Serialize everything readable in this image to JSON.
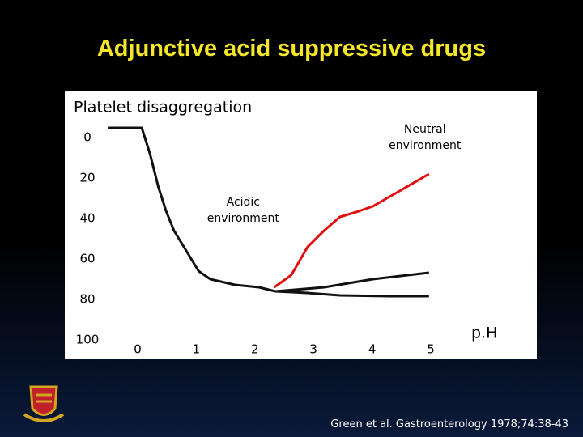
{
  "title": "Adjunctive acid suppressive drugs",
  "citation": "Green et al. Gastroenterology 1978;74:38-43",
  "chart_data": {
    "type": "line",
    "y_label": "Platelet disaggregation",
    "x_label": "p.H",
    "ylim": [
      -10,
      100
    ],
    "yticks": [
      0,
      20,
      40,
      60,
      80,
      100
    ],
    "y_inverted": true,
    "xlim": [
      -0.5,
      5
    ],
    "xticks": [
      0,
      1,
      2,
      3,
      4,
      5
    ],
    "annotations": [
      {
        "text": "Neutral environment",
        "x": 4.9,
        "y": 0
      },
      {
        "text": "Acidic environment",
        "x": 1.8,
        "y": 36
      }
    ],
    "series": [
      {
        "color": "#111111",
        "x": [
          -0.51,
          0.07,
          0.21,
          0.35,
          0.48,
          0.62,
          0.83,
          1.04,
          1.24,
          1.66,
          2.07,
          2.35,
          2.9,
          3.45,
          4.28,
          4.97
        ],
        "values": [
          -4.8,
          -4.8,
          8,
          24,
          36,
          46,
          56,
          66,
          70,
          72.8,
          74,
          76,
          76.8,
          78,
          78.4,
          78.4
        ]
      },
      {
        "color": "#111111",
        "x": [
          2.35,
          3.18,
          4.01,
          4.97
        ],
        "values": [
          76,
          74,
          70,
          66.8
        ]
      },
      {
        "color": "#e01010",
        "x": [
          2.33,
          2.62,
          2.9,
          3.18,
          3.45,
          3.73,
          4.01,
          4.42,
          4.97
        ],
        "values": [
          74,
          68,
          54,
          46,
          39.2,
          36.8,
          34,
          27.2,
          18
        ]
      }
    ]
  }
}
